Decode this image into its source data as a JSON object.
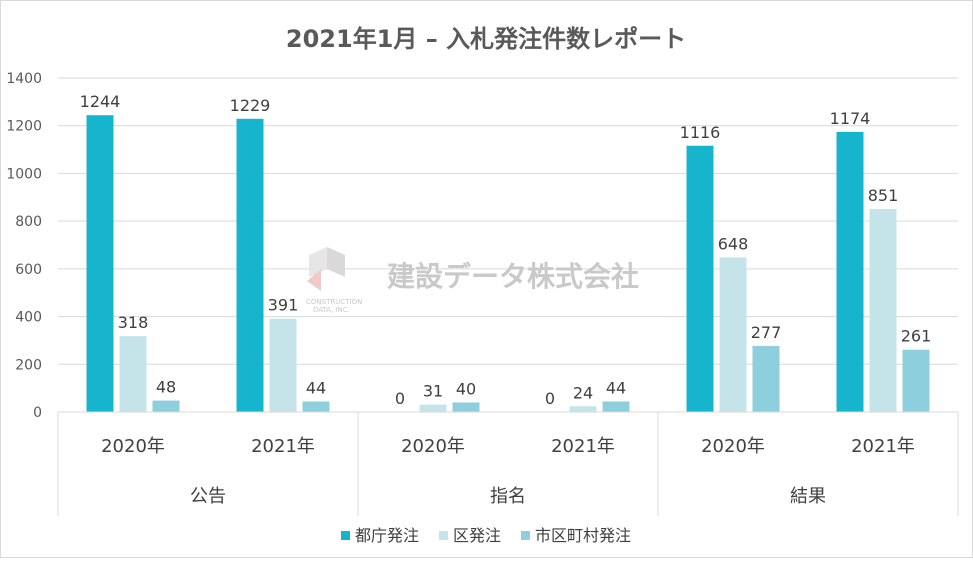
{
  "chart_data": {
    "type": "bar",
    "title": "2021年1月 – 入札発注件数レポート",
    "ylim": [
      0,
      1400
    ],
    "yticks": [
      0,
      200,
      400,
      600,
      800,
      1000,
      1200,
      1400
    ],
    "grid": true,
    "legend_position": "bottom",
    "groups": [
      {
        "name": "公告",
        "categories": [
          "2020年",
          "2021年"
        ]
      },
      {
        "name": "指名",
        "categories": [
          "2020年",
          "2021年"
        ]
      },
      {
        "name": "結果",
        "categories": [
          "2020年",
          "2021年"
        ]
      }
    ],
    "series": [
      {
        "name": "都庁発注",
        "color": "#17b4cd",
        "values": [
          1244,
          1229,
          0,
          0,
          1116,
          1174
        ]
      },
      {
        "name": "区発注",
        "color": "#c4e4ea",
        "values": [
          318,
          391,
          31,
          24,
          648,
          851
        ]
      },
      {
        "name": "市区町村発注",
        "color": "#8dcfdd",
        "values": [
          48,
          44,
          40,
          44,
          277,
          261
        ]
      }
    ]
  },
  "watermark": {
    "text": "建設データ株式会社",
    "subtext": "CONSTRUCTION DATA, INC."
  },
  "colors": {
    "gridline": "#d9d9d9",
    "text": "#595959"
  }
}
